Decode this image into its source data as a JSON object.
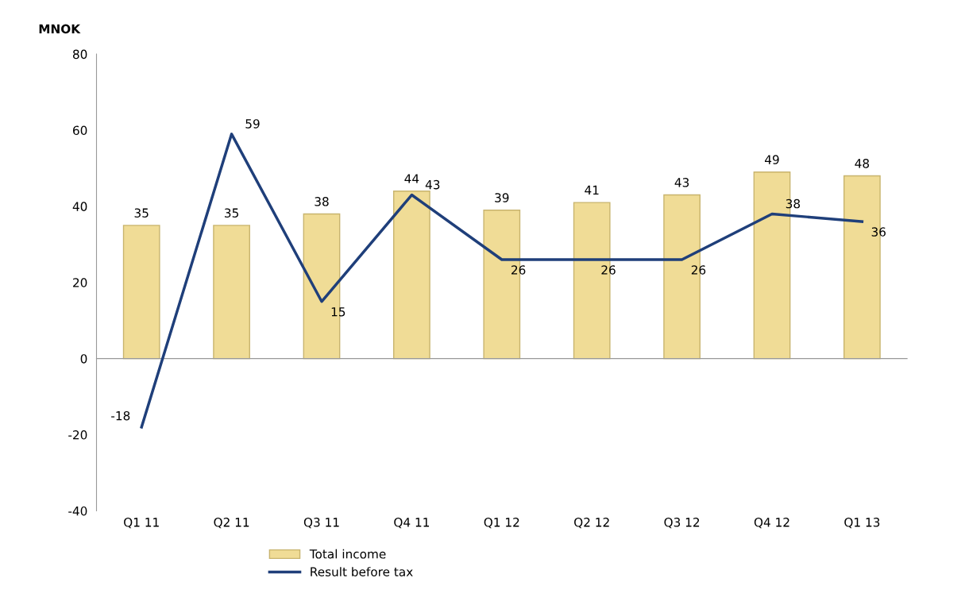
{
  "chart_data": {
    "type": "bar",
    "ylabel": "MNOK",
    "categories": [
      "Q1 11",
      "Q2 11",
      "Q3 11",
      "Q4 11",
      "Q1 12",
      "Q2 12",
      "Q3 12",
      "Q4 12",
      "Q1 13"
    ],
    "series": [
      {
        "name": "Total income",
        "color": "#f0dc96",
        "values": [
          35,
          35,
          38,
          44,
          39,
          41,
          43,
          49,
          48
        ]
      },
      {
        "name": "Result before tax",
        "type": "line",
        "color": "#1f3f7a",
        "values": [
          -18,
          59,
          15,
          43,
          26,
          26,
          26,
          38,
          36
        ]
      }
    ],
    "ylim": [
      -40,
      80
    ],
    "yticks": [
      -40,
      -20,
      0,
      20,
      40,
      60,
      80
    ],
    "legend": "bottom",
    "data_labels": true,
    "marker": "none",
    "line_style": "solid"
  }
}
